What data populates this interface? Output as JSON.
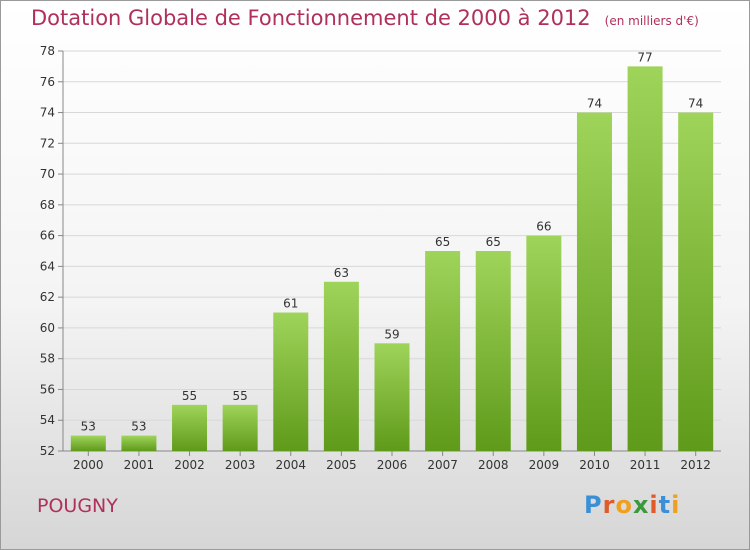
{
  "header": {
    "title": "Dotation Globale de Fonctionnement de 2000 à 2012",
    "unit_note": "(en milliers d'€)"
  },
  "place_name": "POUGNY",
  "logo": {
    "text": "Proxiti",
    "letter_colors": [
      "#3a8fd6",
      "#e05a2a",
      "#f0a020",
      "#3a9a3a",
      "#e05a2a",
      "#3a8fd6",
      "#f0a020"
    ]
  },
  "chart_data": {
    "type": "bar",
    "categories": [
      "2000",
      "2001",
      "2002",
      "2003",
      "2004",
      "2005",
      "2006",
      "2007",
      "2008",
      "2009",
      "2010",
      "2011",
      "2012"
    ],
    "values": [
      53,
      53,
      55,
      55,
      61,
      63,
      59,
      65,
      65,
      66,
      74,
      77,
      74
    ],
    "value_labels": [
      "53",
      "53",
      "55",
      "55",
      "61",
      "63",
      "59",
      "65",
      "65",
      "66",
      "74",
      "77",
      "74"
    ],
    "ylim": [
      52,
      78
    ],
    "yticks": [
      "52",
      "54",
      "56",
      "58",
      "60",
      "62",
      "64",
      "66",
      "68",
      "70",
      "72",
      "74",
      "76",
      "78"
    ],
    "grid": true,
    "bar_color_top": "#9fd45a",
    "bar_color_bottom": "#5f9a1a"
  }
}
